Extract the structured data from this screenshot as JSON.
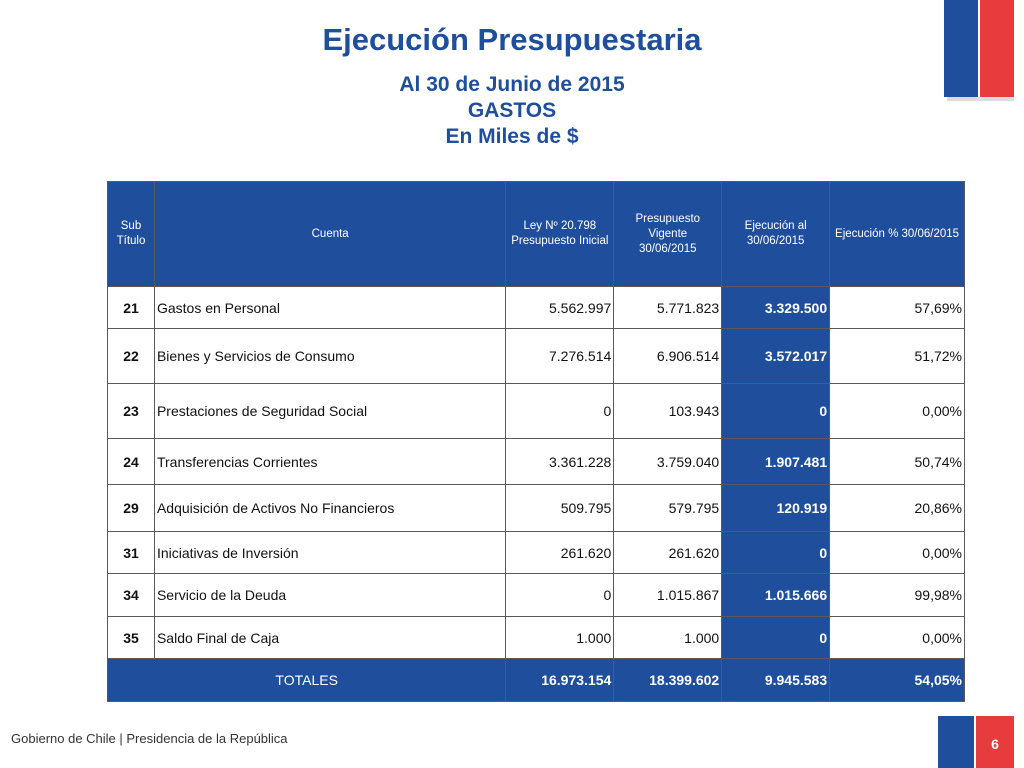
{
  "title": "Ejecución Presupuestaria",
  "subtitle_lines": [
    "Al 30 de Junio de 2015",
    "GASTOS",
    "En Miles de $"
  ],
  "table": {
    "headers": {
      "sub": "Sub Título",
      "cuenta": "Cuenta",
      "ley": "Ley Nº 20.798 Presupuesto Inicial",
      "vigente": "Presupuesto Vigente 30/06/2015",
      "ejecucion": "Ejecución al 30/06/2015",
      "pct": "Ejecución % 30/06/2015"
    },
    "rows": [
      {
        "sub": "21",
        "cuenta": "Gastos en Personal",
        "ley": "5.562.997",
        "vigente": "5.771.823",
        "ejecucion": "3.329.500",
        "pct": "57,69%"
      },
      {
        "sub": "22",
        "cuenta": "Bienes y Servicios de Consumo",
        "ley": "7.276.514",
        "vigente": "6.906.514",
        "ejecucion": "3.572.017",
        "pct": "51,72%"
      },
      {
        "sub": "23",
        "cuenta": "Prestaciones de Seguridad Social",
        "ley": "0",
        "vigente": "103.943",
        "ejecucion": "0",
        "pct": "0,00%"
      },
      {
        "sub": "24",
        "cuenta": "Transferencias Corrientes",
        "ley": "3.361.228",
        "vigente": "3.759.040",
        "ejecucion": "1.907.481",
        "pct": "50,74%"
      },
      {
        "sub": "29",
        "cuenta": "Adquisición de Activos No Financieros",
        "ley": "509.795",
        "vigente": "579.795",
        "ejecucion": "120.919",
        "pct": "20,86%"
      },
      {
        "sub": "31",
        "cuenta": "Iniciativas de Inversión",
        "ley": "261.620",
        "vigente": "261.620",
        "ejecucion": "0",
        "pct": "0,00%"
      },
      {
        "sub": "34",
        "cuenta": "Servicio de la Deuda",
        "ley": "0",
        "vigente": "1.015.867",
        "ejecucion": "1.015.666",
        "pct": "99,98%"
      },
      {
        "sub": "35",
        "cuenta": "Saldo Final de Caja",
        "ley": "1.000",
        "vigente": "1.000",
        "ejecucion": "0",
        "pct": "0,00%"
      }
    ],
    "totals": {
      "label": "TOTALES",
      "ley": "16.973.154",
      "vigente": "18.399.602",
      "ejecucion": "9.945.583",
      "pct": "54,05%"
    }
  },
  "footer": {
    "text": "Gobierno de Chile | Presidencia de la República",
    "page": "6"
  },
  "colors": {
    "brand_blue": "#1f4e9c",
    "brand_red": "#e73c3e"
  }
}
